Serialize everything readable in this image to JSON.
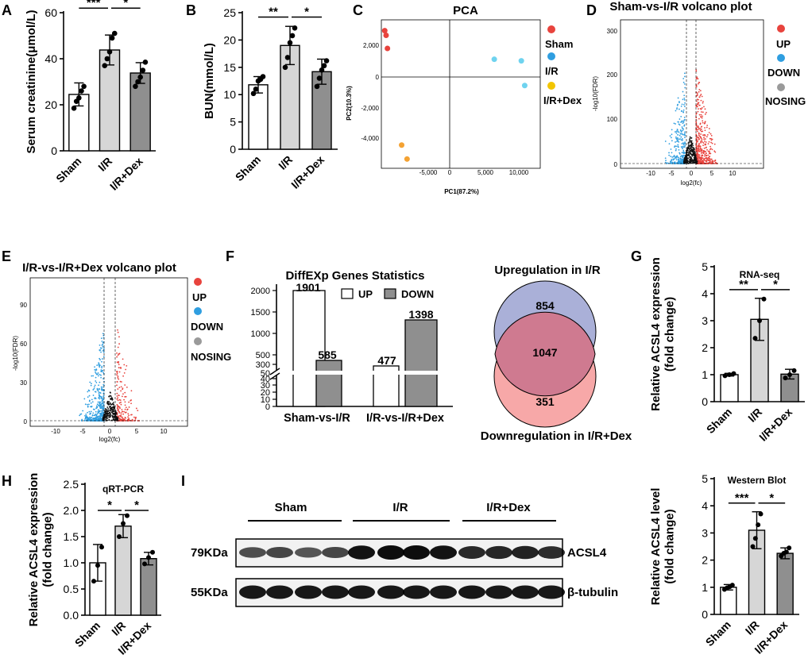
{
  "panels": {
    "A": "A",
    "B": "B",
    "C": "C",
    "D": "D",
    "E": "E",
    "F": "F",
    "G": "G",
    "H": "H",
    "I": "I"
  },
  "colors": {
    "white": "#ffffff",
    "light_gray": "#d6d6d6",
    "dark_gray": "#8f8f8f",
    "red": "#e8433d",
    "blue": "#2f9ee0",
    "gray": "#9a9a9a",
    "yellow": "#f2c500",
    "cyan": "#6fd3ef",
    "orange": "#f4a233",
    "venn_up": "#aab0d8",
    "venn_down": "#f7a8a8",
    "venn_overlap": "#cf7a90"
  },
  "chart_data": [
    {
      "id": "A",
      "type": "bar",
      "categories": [
        "Sham",
        "I/R",
        "I/R+Dex"
      ],
      "values": [
        24.5,
        43.8,
        33.8
      ],
      "errors": [
        5,
        6.5,
        4.5
      ],
      "points": [
        [
          18.5,
          21.5,
          23,
          26,
          28
        ],
        [
          37,
          40,
          43,
          49,
          51
        ],
        [
          28,
          30,
          32,
          35,
          38.5
        ]
      ],
      "ylabel": "Serum creatinine(μmol/L)",
      "ylim": [
        0,
        60
      ],
      "yticks": [
        "0",
        "20",
        "40",
        "60"
      ],
      "sig": [
        {
          "label": "***",
          "from": 0,
          "to": 1,
          "level": 62
        },
        {
          "label": "*",
          "from": 1,
          "to": 2,
          "level": 62
        }
      ]
    },
    {
      "id": "B",
      "type": "bar",
      "categories": [
        "Sham",
        "I/R",
        "I/R+Dex"
      ],
      "values": [
        11.8,
        19,
        14.2
      ],
      "errors": [
        1.5,
        3.5,
        2.3
      ],
      "points": [
        [
          10.2,
          11,
          12.5,
          12.8,
          13.3
        ],
        [
          15,
          16.8,
          19.5,
          20.8,
          22.2
        ],
        [
          11.5,
          13,
          14.5,
          15.3,
          16.2
        ]
      ],
      "ylabel": "BUN(mmol/L)",
      "ylim": [
        0,
        25
      ],
      "yticks": [
        "0",
        "5",
        "10",
        "15",
        "20",
        "25"
      ],
      "sig": [
        {
          "label": "**",
          "from": 0,
          "to": 1,
          "level": 24.2
        },
        {
          "label": "*",
          "from": 1,
          "to": 2,
          "level": 24.2
        }
      ]
    },
    {
      "id": "C",
      "type": "scatter",
      "title": "PCA",
      "xlabel": "PC1(87.2%)",
      "ylabel": "PC2(10.3%)",
      "xlim": [
        -8500,
        15000
      ],
      "ylim": [
        -5800,
        3800
      ],
      "xticks": [
        "-5,000",
        "0",
        "5,000",
        "10,000"
      ],
      "yticks": [
        "2,000",
        "0",
        "-2,000",
        "-4,000"
      ],
      "series": [
        {
          "name": "Sham",
          "color": "#e8433d",
          "x": [
            -8000,
            -7800,
            -7600
          ],
          "y": [
            3100,
            2800,
            1950
          ]
        },
        {
          "name": "I/R",
          "color": "#2f9ee0",
          "x": [
            8200,
            12200,
            12700
          ],
          "y": [
            1250,
            1150,
            -450
          ]
        },
        {
          "name": "I/R+Dex",
          "color": "#f2c500",
          "x": [
            -5500,
            -4700
          ],
          "y": [
            -4300,
            -5200
          ]
        }
      ]
    },
    {
      "id": "D",
      "type": "scatter",
      "title": "Sham-vs-I/R volcano plot",
      "xlabel": "log2(fc)",
      "ylabel": "-log10(FDR)",
      "xlim": [
        -15,
        15
      ],
      "ylim": [
        -10,
        320
      ],
      "xticks": [
        "-10",
        "-5",
        "0",
        "5",
        "10"
      ],
      "yticks": [
        "0",
        "100",
        "200",
        "300"
      ],
      "legend": [
        "UP",
        "DOWN",
        "NOSING"
      ]
    },
    {
      "id": "E",
      "type": "scatter",
      "title": "I/R-vs-I/R+Dex volcano plot",
      "xlabel": "log2(fc)",
      "ylabel": "-log10(FDR)",
      "xlim": [
        -14,
        15
      ],
      "ylim": [
        -5,
        110
      ],
      "xticks": [
        "-10",
        "-5",
        "0",
        "5",
        "10"
      ],
      "yticks": [
        "0",
        "30",
        "60",
        "90"
      ],
      "legend": [
        "UP",
        "DOWN",
        "NOSING"
      ]
    },
    {
      "id": "F",
      "type": "bar",
      "title": "DiffEXp Genes Statistics",
      "categories": [
        "Sham-vs-I/R",
        "I/R-vs-I/R+Dex"
      ],
      "series": [
        {
          "name": "UP",
          "values": [
            1901,
            477
          ]
        },
        {
          "name": "DOWN",
          "values": [
            585,
            1398
          ]
        }
      ],
      "yticks": [
        "0",
        "10",
        "20",
        "30",
        "40",
        "50",
        "300",
        "500",
        "1000",
        "1500",
        "2000"
      ]
    },
    {
      "id": "F-venn",
      "type": "venn",
      "sets": [
        {
          "name": "Upregulation in I/R",
          "only": 854
        },
        {
          "name": "Downregulation in I/R+Dex",
          "only": 351
        }
      ],
      "overlap": 1047
    },
    {
      "id": "G",
      "type": "bar",
      "title": "RNA-seq",
      "categories": [
        "Sham",
        "I/R",
        "I/R+Dex"
      ],
      "values": [
        1,
        3.05,
        1.02
      ],
      "errors": [
        0.05,
        0.78,
        0.18
      ],
      "points": [
        [
          0.96,
          1.0,
          1.04
        ],
        [
          2.35,
          3.0,
          3.8
        ],
        [
          0.88,
          1.0,
          1.15
        ]
      ],
      "ylabel": "Relative ACSL4 expression (fold change)",
      "ylim": [
        0,
        5
      ],
      "yticks": [
        "0",
        "1",
        "2",
        "3",
        "4",
        "5"
      ],
      "sig": [
        {
          "label": "**",
          "from": 0,
          "to": 1,
          "level": 4.15
        },
        {
          "label": "*",
          "from": 1,
          "to": 2,
          "level": 4.15
        }
      ]
    },
    {
      "id": "H",
      "type": "bar",
      "title": "qRT-PCR",
      "categories": [
        "Sham",
        "I/R",
        "I/R+Dex"
      ],
      "values": [
        1.0,
        1.7,
        1.08
      ],
      "errors": [
        0.35,
        0.22,
        0.12
      ],
      "points": [
        [
          0.65,
          0.95,
          1.3
        ],
        [
          1.5,
          1.75,
          1.9
        ],
        [
          0.98,
          1.1,
          1.2
        ]
      ],
      "ylabel": "Relative ACSL4 expression (fold change)",
      "ylim": [
        0,
        2.5
      ],
      "yticks": [
        "0.0",
        "0.5",
        "1.0",
        "1.5",
        "2.0",
        "2.5"
      ],
      "sig": [
        {
          "label": "*",
          "from": 0,
          "to": 1,
          "level": 2.0
        },
        {
          "label": "*",
          "from": 1,
          "to": 2,
          "level": 2.0
        }
      ]
    },
    {
      "id": "I",
      "type": "bar",
      "title": "Western Blot",
      "categories": [
        "Sham",
        "I/R",
        "I/R+Dex"
      ],
      "values": [
        1.0,
        3.1,
        2.25
      ],
      "errors": [
        0.1,
        0.68,
        0.2
      ],
      "points": [
        [
          0.92,
          0.98,
          1.02,
          1.08
        ],
        [
          2.5,
          2.8,
          3.3,
          3.7
        ],
        [
          2.15,
          2.25,
          2.3,
          2.45
        ]
      ],
      "ylabel": "Relative ACSL4 level (fold change)",
      "ylim": [
        0,
        5
      ],
      "yticks": [
        "0",
        "1",
        "2",
        "3",
        "4",
        "5"
      ],
      "sig": [
        {
          "label": "***",
          "from": 0,
          "to": 1,
          "level": 4.1
        },
        {
          "label": "*",
          "from": 1,
          "to": 2,
          "level": 4.1
        }
      ]
    }
  ],
  "blot": {
    "groups": [
      "Sham",
      "I/R",
      "I/R+Dex"
    ],
    "rows": [
      {
        "kda": "79KDa",
        "protein": "ACSL4"
      },
      {
        "kda": "55KDa",
        "protein": "β-tubulin"
      }
    ]
  }
}
